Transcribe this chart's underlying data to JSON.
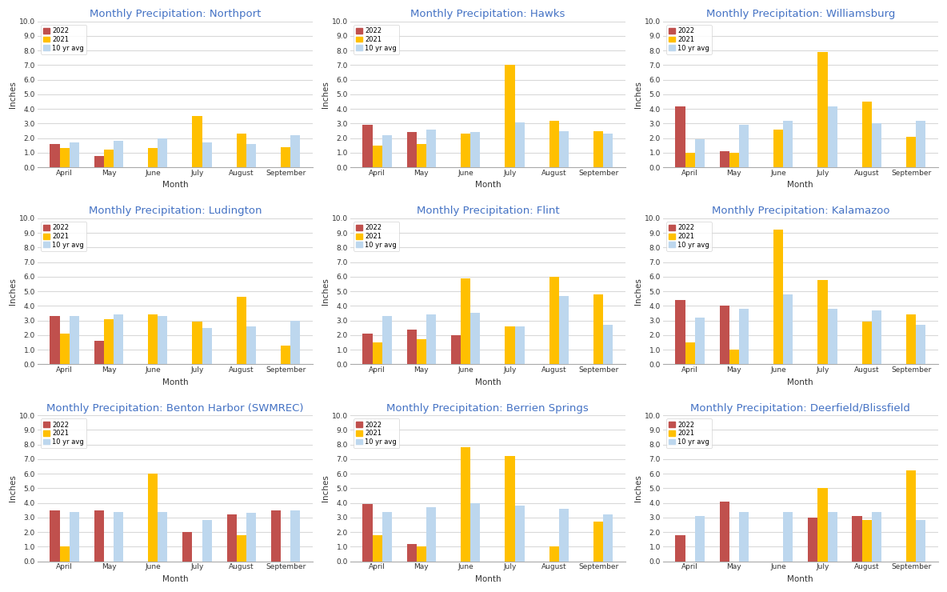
{
  "stations": [
    {
      "title": "Monthly Precipitation: Northport",
      "y2022": [
        1.6,
        0.8,
        0.0,
        0.0,
        0.0,
        0.0
      ],
      "y2021": [
        1.3,
        1.2,
        1.3,
        3.5,
        2.3,
        1.4
      ],
      "avg10": [
        1.7,
        1.8,
        2.0,
        1.7,
        1.6,
        2.2
      ]
    },
    {
      "title": "Monthly Precipitation: Hawks",
      "y2022": [
        2.9,
        2.4,
        0.0,
        0.0,
        0.0,
        0.0
      ],
      "y2021": [
        1.5,
        1.6,
        2.3,
        7.0,
        3.2,
        2.5
      ],
      "avg10": [
        2.2,
        2.6,
        2.4,
        3.1,
        2.5,
        2.3
      ]
    },
    {
      "title": "Monthly Precipitation: Williamsburg",
      "y2022": [
        4.2,
        1.1,
        0.0,
        0.0,
        0.0,
        0.0
      ],
      "y2021": [
        1.0,
        1.0,
        2.6,
        7.9,
        4.5,
        2.1
      ],
      "avg10": [
        1.9,
        2.9,
        3.2,
        4.2,
        3.0,
        3.2
      ]
    },
    {
      "title": "Monthly Precipitation: Ludington",
      "y2022": [
        3.3,
        1.6,
        0.0,
        0.0,
        0.0,
        0.0
      ],
      "y2021": [
        2.1,
        3.1,
        3.4,
        2.9,
        4.6,
        1.3
      ],
      "avg10": [
        3.3,
        3.4,
        3.3,
        2.5,
        2.6,
        3.0
      ]
    },
    {
      "title": "Monthly Precipitation: Flint",
      "y2022": [
        2.1,
        2.4,
        2.0,
        0.0,
        0.0,
        0.0
      ],
      "y2021": [
        1.5,
        1.7,
        5.9,
        2.6,
        6.0,
        4.8
      ],
      "avg10": [
        3.3,
        3.4,
        3.5,
        2.6,
        4.7,
        2.7
      ]
    },
    {
      "title": "Monthly Precipitation: Kalamazoo",
      "y2022": [
        4.4,
        4.0,
        0.0,
        0.0,
        0.0,
        0.0
      ],
      "y2021": [
        1.5,
        1.0,
        9.2,
        5.8,
        2.9,
        3.4
      ],
      "avg10": [
        3.2,
        3.8,
        4.8,
        3.8,
        3.7,
        2.7
      ]
    },
    {
      "title": "Monthly Precipitation: Benton Harbor (SWMREC)",
      "y2022": [
        3.5,
        3.5,
        0.0,
        2.0,
        3.2,
        3.5
      ],
      "y2021": [
        1.0,
        0.0,
        6.0,
        0.0,
        1.8,
        0.0
      ],
      "avg10": [
        3.4,
        3.4,
        3.4,
        2.8,
        3.3,
        3.5
      ]
    },
    {
      "title": "Monthly Precipitation: Berrien Springs",
      "y2022": [
        3.9,
        1.2,
        0.0,
        0.0,
        0.0,
        0.0
      ],
      "y2021": [
        1.8,
        1.0,
        7.8,
        7.2,
        1.0,
        2.7
      ],
      "avg10": [
        3.4,
        3.7,
        4.0,
        3.8,
        3.6,
        3.2
      ]
    },
    {
      "title": "Monthly Precipitation: Deerfield/Blissfield",
      "y2022": [
        1.8,
        4.1,
        0.0,
        3.0,
        3.1,
        0.0
      ],
      "y2021": [
        0.0,
        0.0,
        0.0,
        5.0,
        2.8,
        6.2
      ],
      "avg10": [
        3.1,
        3.4,
        3.4,
        3.4,
        3.4,
        2.8
      ]
    }
  ],
  "months": [
    "April",
    "May",
    "June",
    "July",
    "August",
    "September"
  ],
  "color_2022": "#C0504D",
  "color_2021": "#FFC000",
  "color_avg": "#BDD7EE",
  "ylim": [
    0,
    10.0
  ],
  "ytick_labels": [
    "0.0",
    "1.0",
    "2.0",
    "3.0",
    "4.0",
    "5.0",
    "6.0",
    "7.0",
    "8.0",
    "9.0",
    "10.0"
  ],
  "xlabel": "Month",
  "ylabel": "Inches",
  "title_color": "#4472C4",
  "bg_color": "#FFFFFF",
  "grid_color": "#D9D9D9",
  "title_fontsize": 9.5,
  "tick_fontsize": 6.5,
  "label_fontsize": 7.5,
  "legend_fontsize": 6
}
